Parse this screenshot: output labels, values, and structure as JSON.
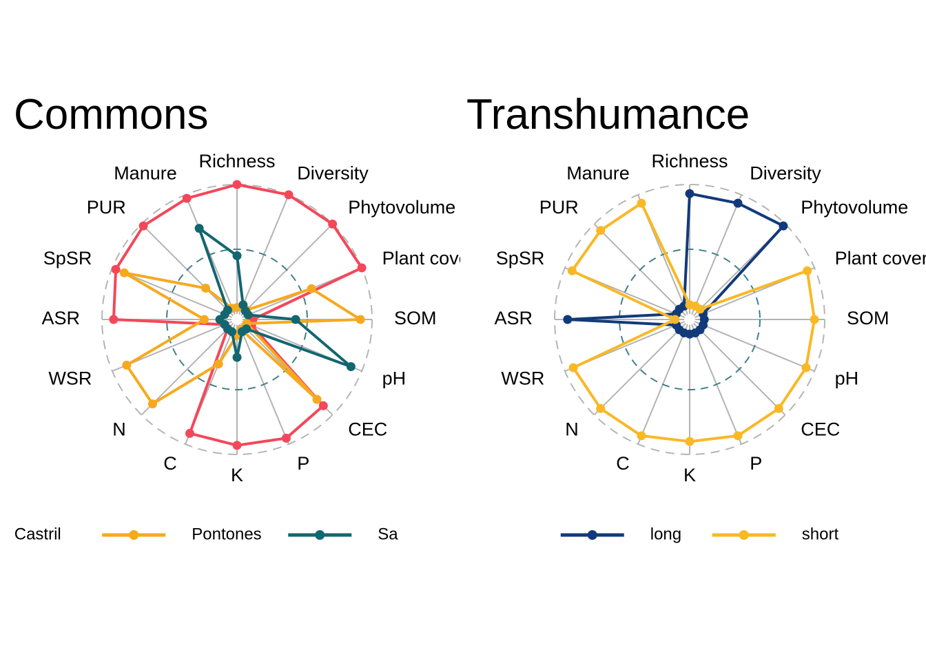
{
  "chart_data": [
    {
      "type": "radar",
      "title": "Commons",
      "axes": [
        "Richness",
        "Diversity",
        "Phytovolume",
        "Plant cover",
        "SOM",
        "pH",
        "CEC",
        "P",
        "K",
        "C",
        "N",
        "WSR",
        "ASR",
        "SpSR",
        "PUR",
        "Manure"
      ],
      "scale": [
        0,
        1
      ],
      "reference_circles": [
        0.5,
        1.0
      ],
      "clip_right": true,
      "legend_position": "bottom",
      "legend_shift": -104,
      "series": [
        {
          "name": "Castril",
          "color": "#F4475A",
          "values": [
            1.0,
            1.0,
            1.0,
            1.0,
            0.08,
            0.08,
            0.9,
            0.95,
            0.93,
            0.91,
            0.06,
            0.06,
            0.91,
            0.97,
            0.98,
            0.97
          ]
        },
        {
          "name": "Pontones",
          "color": "#F7A91E",
          "values": [
            0.05,
            0.08,
            0.06,
            0.58,
            0.91,
            0.04,
            0.83,
            0.04,
            0.08,
            0.33,
            0.88,
            0.88,
            0.21,
            0.9,
            0.3,
            0.05
          ]
        },
        {
          "name": "Sa",
          "color": "#136670",
          "values": [
            0.45,
            0.08,
            0.05,
            0.05,
            0.41,
            0.91,
            0.06,
            0.06,
            0.25,
            0.06,
            0.06,
            0.06,
            0.09,
            0.06,
            0.06,
            0.72
          ]
        }
      ]
    },
    {
      "type": "radar",
      "title": "Transhumance",
      "axes": [
        "Richness",
        "Diversity",
        "Phytovolume",
        "Plant cover",
        "SOM",
        "pH",
        "CEC",
        "P",
        "K",
        "C",
        "N",
        "WSR",
        "ASR",
        "SpSR",
        "PUR",
        "Manure"
      ],
      "scale": [
        0,
        1
      ],
      "reference_circles": [
        0.5,
        1.0
      ],
      "clip_right": true,
      "legend_position": "bottom",
      "legend_shift": 0,
      "series": [
        {
          "name": "long",
          "color": "#123A7A",
          "values": [
            0.93,
            0.93,
            0.98,
            0.07,
            0.07,
            0.07,
            0.07,
            0.07,
            0.07,
            0.07,
            0.07,
            0.07,
            0.9,
            0.07,
            0.07,
            0.07
          ]
        },
        {
          "name": "short",
          "color": "#F9B825",
          "values": [
            0.07,
            0.07,
            0.07,
            0.94,
            0.92,
            0.93,
            0.93,
            0.93,
            0.9,
            0.93,
            0.93,
            0.93,
            0.07,
            0.94,
            0.93,
            0.93
          ]
        }
      ]
    }
  ]
}
